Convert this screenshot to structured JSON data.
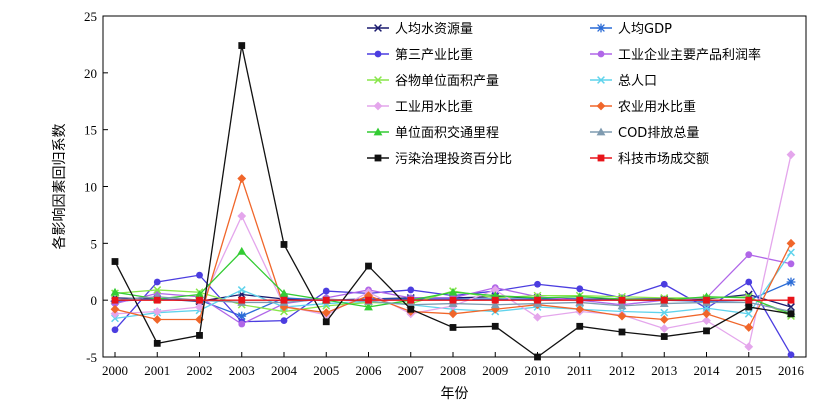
{
  "chart_data": {
    "type": "line",
    "xlabel": "年份",
    "ylabel": "各影响因素回归系数",
    "categories": [
      "2000",
      "2001",
      "2002",
      "2003",
      "2004",
      "2005",
      "2006",
      "2007",
      "2008",
      "2009",
      "2010",
      "2011",
      "2012",
      "2013",
      "2014",
      "2015",
      "2016"
    ],
    "ylim": [
      -5,
      25
    ],
    "yticks": [
      -5,
      0,
      5,
      10,
      15,
      20,
      25
    ],
    "grid": false,
    "legend": "inside top-right, 2 columns",
    "series": [
      {
        "name": "人均水资源量",
        "color": "#1a1a6e",
        "marker": "x",
        "values": [
          0.2,
          0.1,
          -0.1,
          0.5,
          0.1,
          0.0,
          0.1,
          0.2,
          0.2,
          0.3,
          0.2,
          0.1,
          0.1,
          0.1,
          0.1,
          0.5,
          -0.6
        ]
      },
      {
        "name": "人均GDP",
        "color": "#2a6bd6",
        "marker": "star",
        "values": [
          -0.1,
          0.1,
          0.0,
          -1.4,
          0.2,
          0.0,
          0.1,
          0.1,
          0.1,
          0.1,
          0.1,
          0.1,
          0.0,
          0.0,
          -0.1,
          0.0,
          1.6
        ]
      },
      {
        "name": "第三产业比重",
        "color": "#4b3de0",
        "marker": "circle",
        "values": [
          -2.6,
          1.6,
          2.2,
          -1.9,
          -1.8,
          0.8,
          0.6,
          0.9,
          0.4,
          0.8,
          1.4,
          1.0,
          0.2,
          1.4,
          -0.7,
          1.6,
          -4.8
        ]
      },
      {
        "name": "工业企业主要产品利润率",
        "color": "#b066e8",
        "marker": "circle",
        "values": [
          -0.3,
          0.6,
          0.3,
          -2.1,
          -0.3,
          0.2,
          0.9,
          0.2,
          0.2,
          1.1,
          0.3,
          0.0,
          -0.4,
          0.0,
          0.2,
          4.0,
          3.2
        ]
      },
      {
        "name": "谷物单位面积产量",
        "color": "#88e64a",
        "marker": "x",
        "values": [
          0.6,
          0.9,
          0.7,
          -0.4,
          -1.0,
          -0.5,
          -0.2,
          -0.3,
          0.8,
          0.2,
          0.4,
          0.4,
          0.3,
          0.2,
          0.2,
          0.3,
          -1.4
        ]
      },
      {
        "name": "总人口",
        "color": "#5fd3ec",
        "marker": "x",
        "values": [
          -1.6,
          -1.1,
          -0.9,
          0.9,
          -0.6,
          -0.3,
          -0.1,
          -0.4,
          -0.8,
          -1.0,
          -0.6,
          -0.8,
          -1.0,
          -1.1,
          -0.7,
          -1.2,
          4.2
        ]
      },
      {
        "name": "工业用水比重",
        "color": "#e4a6ec",
        "marker": "diamond",
        "values": [
          -1.2,
          -1.0,
          -0.6,
          7.4,
          -0.5,
          -1.3,
          0.7,
          -1.2,
          -0.5,
          0.9,
          -1.5,
          -1.0,
          -1.3,
          -2.5,
          -1.8,
          -4.1,
          12.8
        ]
      },
      {
        "name": "农业用水比重",
        "color": "#f0662a",
        "marker": "diamond",
        "values": [
          -0.8,
          -1.7,
          -1.7,
          10.7,
          -0.6,
          -1.1,
          0.4,
          -1.0,
          -1.2,
          -0.8,
          -0.4,
          -0.8,
          -1.4,
          -1.7,
          -1.2,
          -2.4,
          5.0
        ]
      },
      {
        "name": "单位面积交通里程",
        "color": "#33cc33",
        "marker": "triangle",
        "values": [
          0.7,
          0.1,
          0.5,
          4.3,
          0.6,
          0.0,
          -0.6,
          0.0,
          0.7,
          0.4,
          0.2,
          0.3,
          0.1,
          0.0,
          0.3,
          0.2,
          -1.2
        ]
      },
      {
        "name": "COD排放总量",
        "color": "#7f9bb0",
        "marker": "triangle",
        "values": [
          0.0,
          0.3,
          0.0,
          -0.2,
          -0.2,
          0.1,
          -0.1,
          -0.4,
          -0.3,
          -0.4,
          -0.3,
          -0.2,
          -0.5,
          -0.3,
          -0.2,
          -0.2,
          -1.0
        ]
      },
      {
        "name": "污染治理投资百分比",
        "color": "#111111",
        "marker": "square",
        "values": [
          3.4,
          -3.8,
          -3.1,
          22.4,
          4.9,
          -1.9,
          3.0,
          -0.8,
          -2.4,
          -2.3,
          -5.0,
          -2.3,
          -2.8,
          -3.2,
          -2.7,
          -0.6,
          -1.2
        ]
      },
      {
        "name": "科技市场成交额",
        "color": "#e8141a",
        "marker": "square",
        "values": [
          0.0,
          0.0,
          0.0,
          0.0,
          0.0,
          0.0,
          0.0,
          0.0,
          0.0,
          0.0,
          0.0,
          0.0,
          0.0,
          0.0,
          0.0,
          0.0,
          0.0
        ]
      }
    ]
  }
}
